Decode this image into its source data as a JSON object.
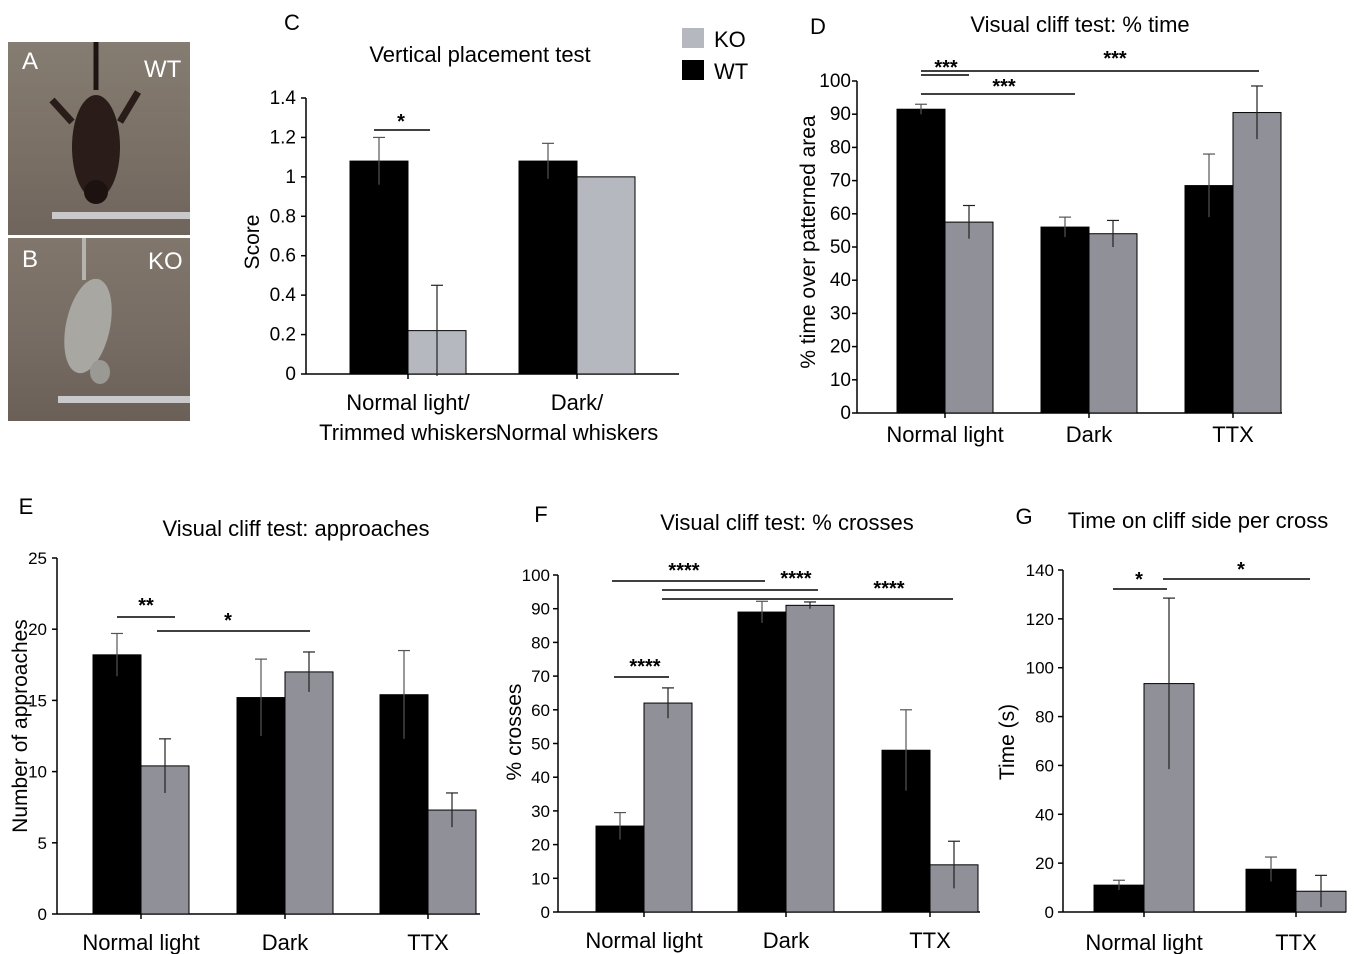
{
  "photos": [
    {
      "letter": "A",
      "tag": "WT"
    },
    {
      "letter": "B",
      "tag": "KO"
    }
  ],
  "legend": [
    {
      "label": "KO",
      "color": "#b6b8c0"
    },
    {
      "label": "WT",
      "color": "#000000"
    }
  ],
  "colors": {
    "wt": "#000000",
    "ko_c": "#b6b8c0",
    "ko": "#8f9098"
  },
  "chart_data": [
    {
      "panel": "C",
      "type": "bar",
      "title": "Vertical placement test",
      "ylabel": "Score",
      "xlabel": "",
      "ylim": [
        0,
        1.4
      ],
      "yticks": [
        "0",
        "0.2",
        "0.4",
        "0.6",
        "0.8",
        "1",
        "1.2",
        "1.4"
      ],
      "categories": [
        [
          "Normal light/",
          "Trimmed whiskers"
        ],
        [
          "Dark/",
          "Normal whiskers"
        ]
      ],
      "series": [
        {
          "name": "WT",
          "values": [
            1.08,
            1.08
          ],
          "errors": [
            0.12,
            0.09
          ]
        },
        {
          "name": "KO",
          "values": [
            0.22,
            1.0
          ],
          "errors": [
            0.23,
            0
          ]
        }
      ],
      "significance": [
        {
          "label": "*"
        }
      ]
    },
    {
      "panel": "D",
      "type": "bar",
      "title": "Visual cliff test: % time",
      "ylabel": "% time over patterned area",
      "xlabel": "",
      "ylim": [
        0,
        100
      ],
      "yticks": [
        "0",
        "10",
        "20",
        "30",
        "40",
        "50",
        "60",
        "70",
        "80",
        "90",
        "100"
      ],
      "categories": [
        "Normal light",
        "Dark",
        "TTX"
      ],
      "series": [
        {
          "name": "WT",
          "values": [
            91.5,
            56,
            68.5
          ],
          "errors": [
            1.5,
            3,
            9.5
          ]
        },
        {
          "name": "KO",
          "values": [
            57.5,
            54,
            90.5
          ],
          "errors": [
            5,
            4,
            8
          ]
        }
      ],
      "significance": [
        {
          "label": "***"
        },
        {
          "label": "***"
        },
        {
          "label": "***"
        }
      ]
    },
    {
      "panel": "E",
      "type": "bar",
      "title": "Visual cliff test:  approaches",
      "ylabel": "Number of approaches",
      "xlabel": "",
      "ylim": [
        0,
        25
      ],
      "yticks": [
        "0",
        "5",
        "10",
        "15",
        "20",
        "25"
      ],
      "categories": [
        "Normal light",
        "Dark",
        "TTX"
      ],
      "series": [
        {
          "name": "WT",
          "values": [
            18.2,
            15.2,
            15.4
          ],
          "errors": [
            1.5,
            2.7,
            3.1
          ]
        },
        {
          "name": "KO",
          "values": [
            10.4,
            17.0,
            7.3
          ],
          "errors": [
            1.9,
            1.4,
            1.2
          ]
        }
      ],
      "significance": [
        {
          "label": "**"
        },
        {
          "label": "*"
        }
      ]
    },
    {
      "panel": "F",
      "type": "bar",
      "title": "Visual cliff test: % crosses",
      "ylabel": "% crosses",
      "xlabel": "",
      "ylim": [
        0,
        100
      ],
      "yticks": [
        "0",
        "10",
        "20",
        "30",
        "40",
        "50",
        "60",
        "70",
        "80",
        "90",
        "100"
      ],
      "categories": [
        "Normal light",
        "Dark",
        "TTX"
      ],
      "series": [
        {
          "name": "WT",
          "values": [
            25.5,
            89,
            48
          ],
          "errors": [
            4,
            3.2,
            12
          ]
        },
        {
          "name": "KO",
          "values": [
            62,
            91,
            14
          ],
          "errors": [
            4.5,
            1,
            7
          ]
        }
      ],
      "significance": [
        {
          "label": "****"
        },
        {
          "label": "****"
        },
        {
          "label": "****"
        },
        {
          "label": "****"
        }
      ]
    },
    {
      "panel": "G",
      "type": "bar",
      "title": "Time on cliff side per cross",
      "ylabel": "Time (s)",
      "xlabel": "",
      "ylim": [
        0,
        140
      ],
      "yticks": [
        "0",
        "20",
        "40",
        "60",
        "80",
        "100",
        "120",
        "140"
      ],
      "categories": [
        "Normal light",
        "TTX"
      ],
      "series": [
        {
          "name": "WT",
          "values": [
            11,
            17.5
          ],
          "errors": [
            2,
            5
          ]
        },
        {
          "name": "KO",
          "values": [
            93.5,
            8.5
          ],
          "errors": [
            35,
            6.5
          ]
        }
      ],
      "significance": [
        {
          "label": "*"
        },
        {
          "label": "*"
        }
      ]
    }
  ]
}
